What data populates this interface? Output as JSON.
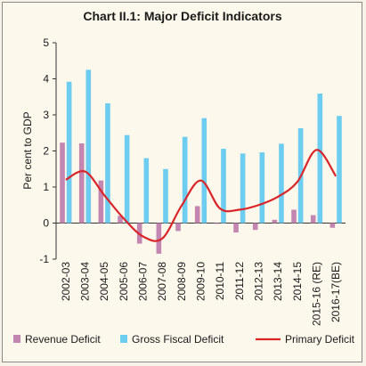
{
  "chart_data": {
    "type": "bar",
    "title": "Chart II.1: Major Deficit Indicators",
    "ylabel": "Per cent to GDP",
    "xlabel": "",
    "ylim": [
      -1,
      5
    ],
    "yticks": [
      -1,
      0,
      1,
      2,
      3,
      4,
      5
    ],
    "grid": false,
    "legend_position": "bottom",
    "categories": [
      "2002-03",
      "2003-04",
      "2004-05",
      "2005-06",
      "2006-07",
      "2007-08",
      "2008-09",
      "2009-10",
      "2010-11",
      "2011-12",
      "2012-13",
      "2013-14",
      "2014-15",
      "2015-16 (RE)",
      "2016-17(BE)"
    ],
    "series": [
      {
        "name": "Revenue Deficit",
        "type": "bar",
        "color": "#c386b0",
        "values": [
          2.23,
          2.21,
          1.18,
          0.2,
          -0.57,
          -0.85,
          -0.22,
          0.47,
          -0.02,
          -0.26,
          -0.19,
          0.09,
          0.37,
          0.22,
          -0.13
        ]
      },
      {
        "name": "Gross Fiscal Deficit",
        "type": "bar",
        "color": "#6ccdf0",
        "values": [
          3.92,
          4.25,
          3.32,
          2.44,
          1.8,
          1.5,
          2.39,
          2.91,
          2.06,
          1.93,
          1.96,
          2.2,
          2.63,
          3.59,
          2.97
        ]
      },
      {
        "name": "Primary Deficit",
        "type": "line",
        "color": "#d9252a",
        "values": [
          1.2,
          1.43,
          0.77,
          0.13,
          -0.37,
          -0.43,
          0.48,
          1.18,
          0.4,
          0.37,
          0.5,
          0.73,
          1.14,
          2.03,
          1.3
        ]
      }
    ]
  }
}
